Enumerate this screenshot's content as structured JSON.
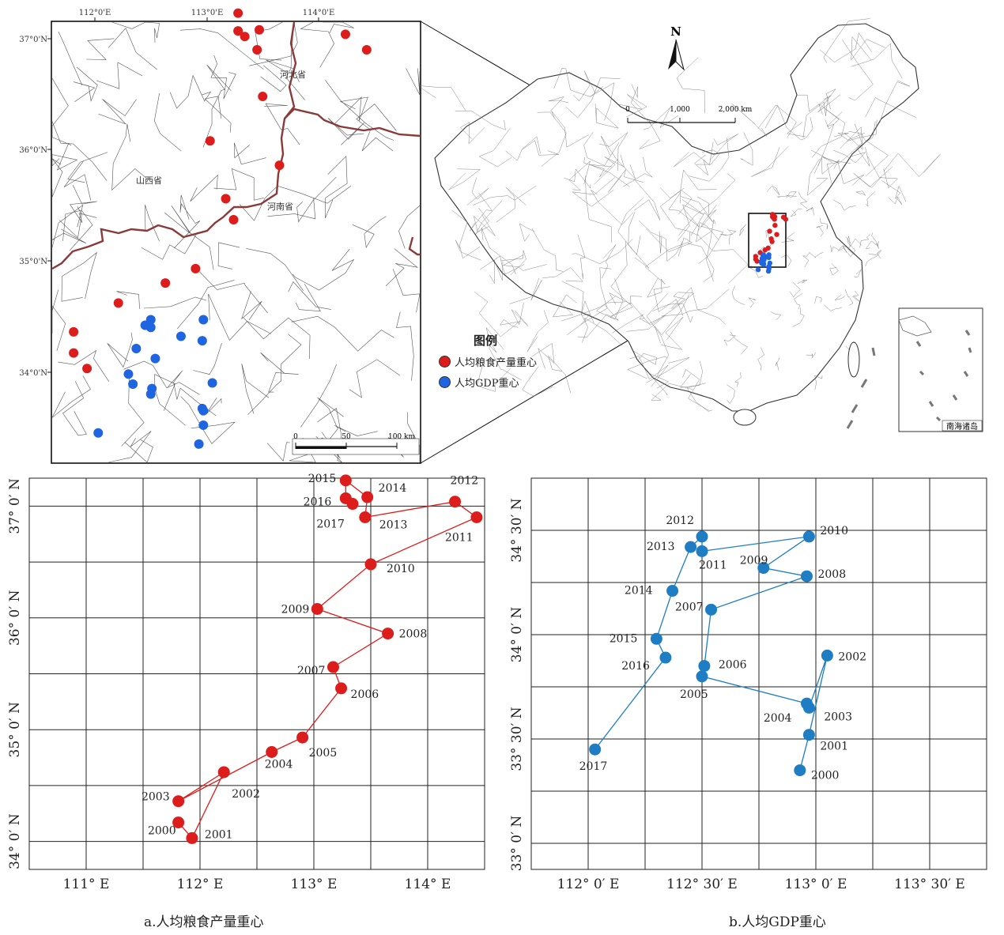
{
  "top_map": {
    "lon_ticks": [
      "112°0'E",
      "113°0'E",
      "114°0'E"
    ],
    "lat_ticks": [
      "37°0'N",
      "36°0'N",
      "35°0'N",
      "34°0'N"
    ],
    "provinces": {
      "hebei": "河北省",
      "shanxi": "山西省",
      "henan": "河南省"
    },
    "scale": {
      "labels": [
        "0",
        "50",
        "100 km"
      ]
    },
    "grain_points_color": "#dd1c1c",
    "gdp_points_color": "#1f64e0",
    "border_color": "#8b3a3a"
  },
  "legend": {
    "title": "图例",
    "items": [
      {
        "label": "人均粮食产量重心",
        "color": "#dd1c1c"
      },
      {
        "label": "人均GDP重心",
        "color": "#1f64e0"
      }
    ]
  },
  "china_map": {
    "north": "N",
    "scale_labels": [
      "0",
      "1,000",
      "2,000 km"
    ],
    "inset_label": "南海诸岛"
  },
  "chart_data": [
    {
      "type": "line",
      "caption": "a.人均粮食产量重心",
      "color": "#dd1c1c",
      "xlim": [
        110.5,
        114.5
      ],
      "ylim": [
        33.75,
        37.25
      ],
      "x_ticks": [
        {
          "v": 111,
          "label": "111° E"
        },
        {
          "v": 112,
          "label": "112° E"
        },
        {
          "v": 113,
          "label": "113° E"
        },
        {
          "v": 114,
          "label": "114° E"
        }
      ],
      "y_ticks": [
        {
          "v": 34,
          "label": "34° 0′ N"
        },
        {
          "v": 35,
          "label": "35° 0′ N"
        },
        {
          "v": 36,
          "label": "36° 0′ N"
        },
        {
          "v": 37,
          "label": "37° 0′ N"
        }
      ],
      "points": [
        {
          "year": "2000",
          "x": 111.81,
          "y": 34.17
        },
        {
          "year": "2001",
          "x": 111.93,
          "y": 34.03
        },
        {
          "year": "2002",
          "x": 112.21,
          "y": 34.62
        },
        {
          "year": "2003",
          "x": 111.81,
          "y": 34.36
        },
        {
          "year": "2004",
          "x": 112.63,
          "y": 34.8
        },
        {
          "year": "2005",
          "x": 112.9,
          "y": 34.93
        },
        {
          "year": "2006",
          "x": 113.24,
          "y": 35.37
        },
        {
          "year": "2007",
          "x": 113.17,
          "y": 35.56
        },
        {
          "year": "2008",
          "x": 113.65,
          "y": 35.86
        },
        {
          "year": "2009",
          "x": 113.03,
          "y": 36.08
        },
        {
          "year": "2010",
          "x": 113.5,
          "y": 36.48
        },
        {
          "year": "2011",
          "x": 114.43,
          "y": 36.9
        },
        {
          "year": "2012",
          "x": 114.24,
          "y": 37.04
        },
        {
          "year": "2013",
          "x": 113.45,
          "y": 36.9
        },
        {
          "year": "2014",
          "x": 113.47,
          "y": 37.08
        },
        {
          "year": "2015",
          "x": 113.28,
          "y": 37.23
        },
        {
          "year": "2016",
          "x": 113.28,
          "y": 37.07
        },
        {
          "year": "2017",
          "x": 113.34,
          "y": 37.02
        }
      ]
    },
    {
      "type": "line",
      "caption": "b.人均GDP重心",
      "color": "#1f7dc4",
      "xlim": [
        111.75,
        113.75
      ],
      "ylim": [
        32.875,
        34.75
      ],
      "x_ticks": [
        {
          "v": 112,
          "label": "112° 0′ E"
        },
        {
          "v": 112.5,
          "label": "112° 30′ E"
        },
        {
          "v": 113,
          "label": "113° 0′ E"
        },
        {
          "v": 113.5,
          "label": "113° 30′ E"
        }
      ],
      "y_ticks": [
        {
          "v": 33,
          "label": "33° 0′ N"
        },
        {
          "v": 33.5,
          "label": "33° 30′ N"
        },
        {
          "v": 34,
          "label": "34° 0′ N"
        },
        {
          "v": 34.5,
          "label": "34° 30′ N"
        }
      ],
      "points": [
        {
          "year": "2000",
          "x": 112.93,
          "y": 33.35
        },
        {
          "year": "2001",
          "x": 112.97,
          "y": 33.52
        },
        {
          "year": "2002",
          "x": 113.05,
          "y": 33.9
        },
        {
          "year": "2003",
          "x": 112.97,
          "y": 33.65
        },
        {
          "year": "2004",
          "x": 112.96,
          "y": 33.67
        },
        {
          "year": "2005",
          "x": 112.5,
          "y": 33.8
        },
        {
          "year": "2006",
          "x": 112.51,
          "y": 33.85
        },
        {
          "year": "2007",
          "x": 112.54,
          "y": 34.12
        },
        {
          "year": "2008",
          "x": 112.96,
          "y": 34.28
        },
        {
          "year": "2009",
          "x": 112.77,
          "y": 34.32
        },
        {
          "year": "2010",
          "x": 112.97,
          "y": 34.47
        },
        {
          "year": "2011",
          "x": 112.5,
          "y": 34.4
        },
        {
          "year": "2012",
          "x": 112.5,
          "y": 34.47
        },
        {
          "year": "2013",
          "x": 112.45,
          "y": 34.42
        },
        {
          "year": "2014",
          "x": 112.37,
          "y": 34.21
        },
        {
          "year": "2015",
          "x": 112.3,
          "y": 33.98
        },
        {
          "year": "2016",
          "x": 112.34,
          "y": 33.89
        },
        {
          "year": "2017",
          "x": 112.03,
          "y": 33.45
        }
      ]
    }
  ]
}
